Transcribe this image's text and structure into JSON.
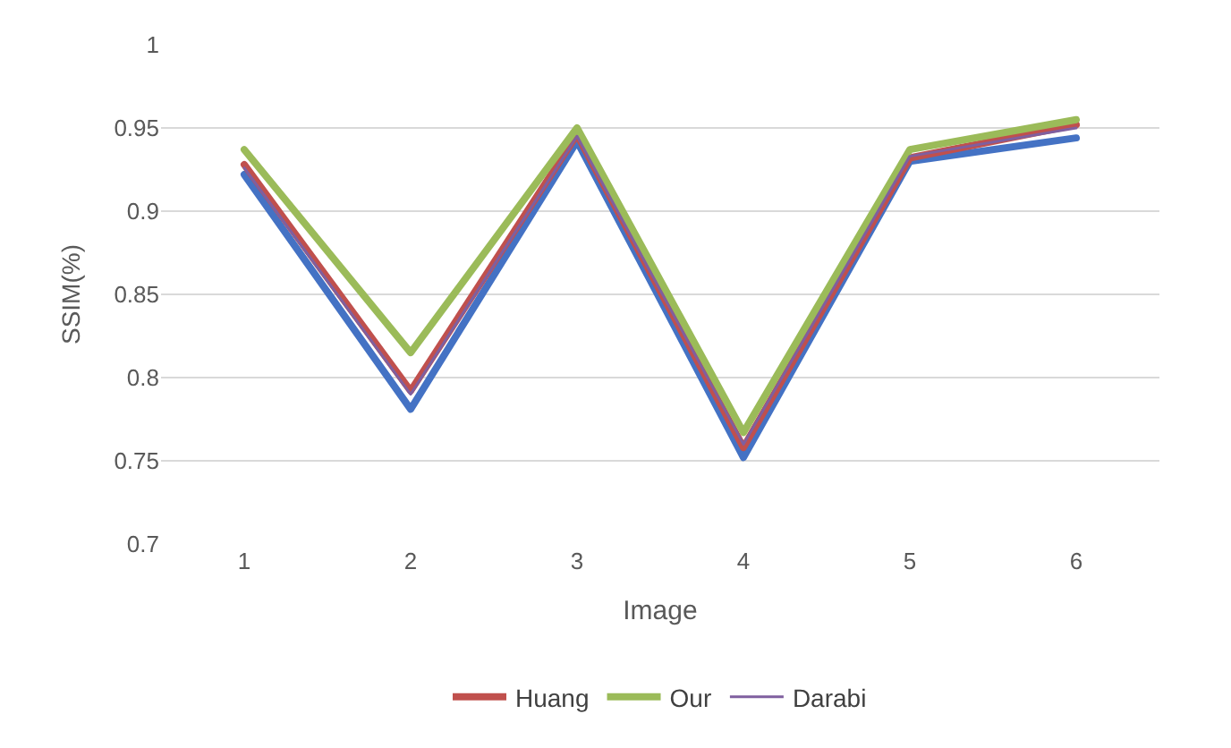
{
  "chart_data": {
    "type": "line",
    "xlabel": "Image",
    "ylabel": "SSIM(%)",
    "categories": [
      "1",
      "2",
      "3",
      "4",
      "5",
      "6"
    ],
    "series": [
      {
        "color": "#4472c4",
        "values": [
          0.922,
          0.781,
          0.942,
          0.752,
          0.93,
          0.944
        ]
      },
      {
        "name": "Huang",
        "color": "#c0504d",
        "values": [
          0.928,
          0.792,
          0.946,
          0.758,
          0.932,
          0.952
        ]
      },
      {
        "name": "Our",
        "color": "#9bbb59",
        "values": [
          0.937,
          0.815,
          0.95,
          0.767,
          0.937,
          0.955
        ]
      },
      {
        "name": "Darabi",
        "color": "#7f5f9f",
        "values": [
          0.926,
          0.79,
          0.945,
          0.76,
          0.933,
          0.95
        ]
      }
    ],
    "ylim": [
      0.7,
      1
    ],
    "yticks": [
      0.7,
      0.75,
      0.8,
      0.85,
      0.9,
      0.95,
      1
    ],
    "grid": "y",
    "legend": "bottom",
    "marker": "none",
    "line_style": "solid"
  }
}
